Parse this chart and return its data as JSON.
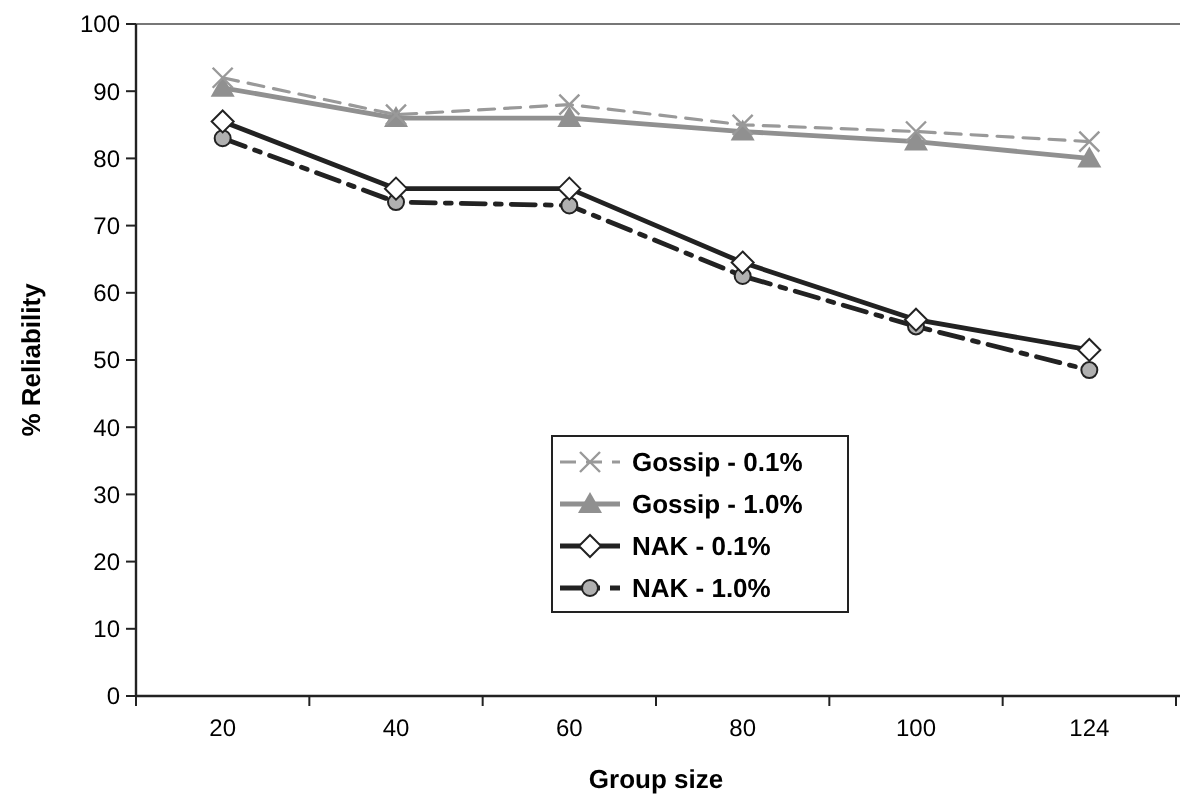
{
  "chart_data": {
    "type": "line",
    "xlabel": "Group size",
    "ylabel": "% Reliability",
    "categories": [
      "20",
      "40",
      "60",
      "80",
      "100",
      "124"
    ],
    "ylim": [
      0,
      100
    ],
    "yticks": [
      0,
      10,
      20,
      30,
      40,
      50,
      60,
      70,
      80,
      90,
      100
    ],
    "grid": false,
    "legend": "bottom",
    "series": [
      {
        "name": "Gossip - 0.1%",
        "color": "#999999",
        "marker": "cross",
        "line_style": "dashed",
        "values": [
          92,
          86.5,
          88,
          85,
          84,
          82.5
        ]
      },
      {
        "name": "Gossip - 1.0%",
        "color": "#909090",
        "marker": "triangle",
        "line_style": "solid",
        "values": [
          90.5,
          86,
          86,
          84,
          82.5,
          80
        ]
      },
      {
        "name": "NAK - 0.1%",
        "color": "#222222",
        "marker": "diamond",
        "line_style": "solid",
        "values": [
          85.5,
          75.5,
          75.5,
          64.5,
          56,
          51.5
        ]
      },
      {
        "name": "NAK - 1.0%",
        "color": "#222222",
        "marker": "circle",
        "line_style": "dashdot",
        "values": [
          83,
          73.5,
          73,
          62.5,
          55,
          48.5
        ]
      }
    ]
  }
}
